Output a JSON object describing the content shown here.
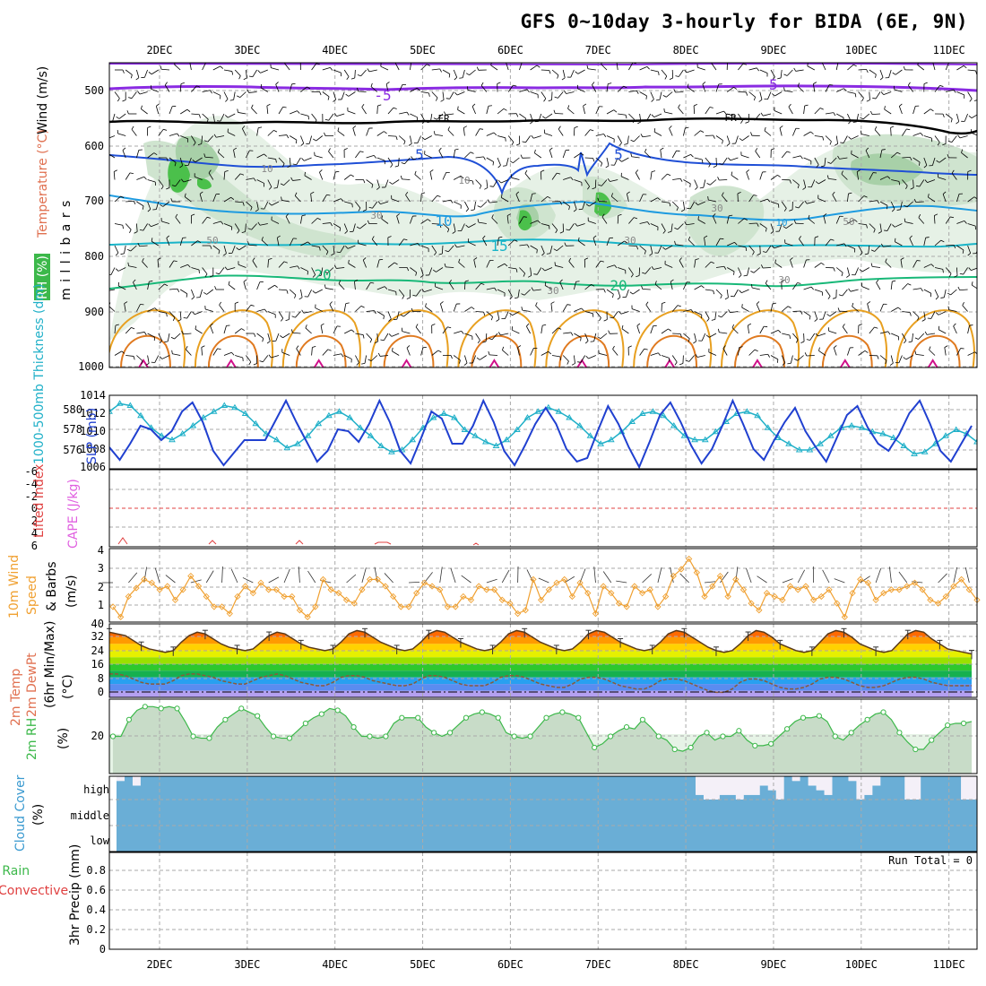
{
  "title": "GFS 0~10day 3-hourly for BIDA (6E, 9N)",
  "days": [
    "2DEC",
    "3DEC",
    "4DEC",
    "5DEC",
    "6DEC",
    "7DEC",
    "8DEC",
    "9DEC",
    "10DEC",
    "11DEC"
  ],
  "colors": {
    "frame": "#000000",
    "grid": "#aaaaaa",
    "temp_purple": "#8a2be2",
    "temp_blue": "#1f4fd6",
    "temp_lightblue": "#1e9be0",
    "temp_cyan": "#19b4c8",
    "temp_green": "#18b878",
    "temp_orange": "#e8a020",
    "temp_red": "#d83010",
    "rh_green": "#3cb84a",
    "slp": "#2040d0",
    "thick": "#20b0c8",
    "wind10": "#f0a030",
    "rh2m": "#3cb84a",
    "cloud": "#6aaed6",
    "lifted": "#e04040",
    "cape": "#e060e0"
  },
  "chart_data": [
    {
      "id": "upper",
      "type": "contour",
      "ylabel_parts": [
        "RH (%)",
        "Temperature (°C)",
        "Wind (m/s)",
        "m i l l i b a r s"
      ],
      "yticks": [
        "500",
        "600",
        "700",
        "800",
        "900",
        "1000"
      ],
      "contour_labels": [
        "-5",
        "-5",
        "FR",
        "FR",
        "5",
        "5",
        "10",
        "10",
        "15",
        "20",
        "20",
        "10",
        "10",
        "30",
        "30",
        "30",
        "30",
        "30",
        "50",
        "50"
      ]
    },
    {
      "id": "thickness-slp",
      "type": "line",
      "ylabel_left": "1000-500mb Thickness (dm)",
      "ylabel_right": "SLP (mb)",
      "yticks_left": [
        "580",
        "578",
        "576"
      ],
      "yticks_right": [
        "1014",
        "1012",
        "1010",
        "1008",
        "1006"
      ],
      "slp": [
        1008.2,
        1006.8,
        1008.6,
        1010.6,
        1010.2,
        1009.0,
        1010.0,
        1012.2,
        1013.2,
        1011.0,
        1007.8,
        1006.2,
        1007.6,
        1009.0,
        1009.0,
        1009.0,
        1011.2,
        1013.4,
        1011.0,
        1008.8,
        1006.6,
        1007.8,
        1010.2,
        1010.0,
        1008.8,
        1010.8,
        1013.4,
        1011.0,
        1007.8,
        1006.4,
        1009.2,
        1012.2,
        1011.4,
        1008.6,
        1008.6,
        1010.6,
        1013.4,
        1011.0,
        1007.8,
        1006.2,
        1008.4,
        1010.8,
        1012.6,
        1010.8,
        1008.0,
        1006.6,
        1007.0,
        1010.0,
        1012.8,
        1010.8,
        1008.2,
        1006.0,
        1008.8,
        1011.8,
        1013.2,
        1011.0,
        1008.4,
        1006.4,
        1008.0,
        1010.6,
        1013.4,
        1010.8,
        1008.0,
        1006.8,
        1009.0,
        1011.0,
        1012.6,
        1010.0,
        1008.2,
        1006.6,
        1009.2,
        1011.8,
        1012.8,
        1010.4,
        1008.6,
        1007.8,
        1009.6,
        1012.0,
        1013.4,
        1010.8,
        1007.8,
        1006.6,
        1008.6,
        1010.6
      ],
      "thickness": [
        579.8,
        580.6,
        580.4,
        579.4,
        578.2,
        577.4,
        577.0,
        577.6,
        578.4,
        579.2,
        579.8,
        580.4,
        580.2,
        579.6,
        578.6,
        577.6,
        577.0,
        576.2,
        576.6,
        577.4,
        578.6,
        579.4,
        579.8,
        579.2,
        578.2,
        577.4,
        576.4,
        575.8,
        576.0,
        577.0,
        578.2,
        579.2,
        579.6,
        579.2,
        578.0,
        577.4,
        576.8,
        576.4,
        577.0,
        578.0,
        579.2,
        579.8,
        580.2,
        579.8,
        579.2,
        578.4,
        577.4,
        576.6,
        577.0,
        577.8,
        578.8,
        579.6,
        579.8,
        579.4,
        578.4,
        577.4,
        577.0,
        577.0,
        577.8,
        578.8,
        579.6,
        579.8,
        579.4,
        578.2,
        577.2,
        576.6,
        576.0,
        576.0,
        576.6,
        577.4,
        578.2,
        578.4,
        578.2,
        577.8,
        577.6,
        577.2,
        576.4,
        575.6,
        575.8,
        576.6,
        577.4,
        578.0,
        577.6,
        576.8
      ]
    },
    {
      "id": "li-cape",
      "type": "line",
      "ylabel_left": "Lifted Index",
      "ylabel_right": "CAPE (J/kg)",
      "yticks": [
        "-6",
        "-4",
        "-2",
        "0",
        "2",
        "4",
        "6"
      ]
    },
    {
      "id": "wind10m",
      "type": "line",
      "ylabel": "10m Wind Speed & Barbs (m/s)",
      "ylabel_parts": [
        "10m Wind",
        "Speed",
        "& Barbs",
        "(m/s)"
      ],
      "yticks": [
        "4",
        "3",
        "2",
        "1"
      ],
      "ylim": [
        0,
        4.3
      ],
      "values": [
        1.0,
        0.4,
        1.6,
        2.1,
        2.6,
        2.4,
        2.0,
        2.2,
        1.4,
        2.0,
        2.8,
        2.2,
        1.6,
        1.0,
        1.0,
        0.6,
        1.6,
        2.2,
        1.8,
        2.4,
        2.0,
        2.0,
        1.6,
        1.6,
        0.8,
        0.4,
        1.0,
        2.6,
        2.0,
        1.8,
        1.4,
        1.2,
        2.0,
        2.6,
        2.6,
        2.2,
        1.6,
        1.0,
        1.0,
        1.8,
        2.4,
        2.2,
        2.0,
        1.0,
        1.0,
        1.6,
        1.4,
        2.2,
        2.0,
        2.0,
        1.4,
        1.2,
        0.6,
        0.8,
        2.6,
        1.4,
        2.0,
        2.4,
        2.6,
        1.6,
        2.4,
        1.8,
        0.6,
        2.2,
        1.8,
        1.2,
        1.0,
        2.2,
        1.8,
        2.0,
        1.0,
        1.6,
        2.8,
        3.2,
        3.8,
        3.0,
        1.6,
        2.2,
        2.8,
        1.6,
        2.6,
        2.0,
        1.2,
        0.8,
        1.8,
        1.6,
        1.4,
        2.2,
        2.0,
        2.2,
        1.4,
        1.6,
        2.0,
        1.2,
        0.4,
        1.8,
        2.6,
        2.4,
        1.4,
        1.8,
        2.0,
        2.0,
        2.2,
        2.4,
        2.0,
        1.4,
        1.2,
        1.6,
        2.2,
        2.6,
        2.0,
        1.4
      ]
    },
    {
      "id": "temp2m",
      "type": "area",
      "ylabel_parts": [
        "2m Temp",
        "2m DewPt",
        "(6hr Min/Max)",
        "(°C)"
      ],
      "yticks": [
        "40",
        "32",
        "24",
        "16",
        "8",
        "0"
      ],
      "ylim": [
        -4,
        40
      ],
      "temp": [
        35,
        34,
        33,
        30,
        27,
        25,
        24,
        23,
        24,
        29,
        33,
        35,
        34,
        31,
        28,
        26,
        25,
        24,
        25,
        29,
        33,
        35,
        34,
        31,
        28,
        26,
        25,
        24,
        25,
        29,
        34,
        36,
        35,
        32,
        29,
        27,
        25,
        24,
        25,
        29,
        34,
        36,
        35,
        32,
        29,
        27,
        25,
        24,
        25,
        29,
        34,
        36,
        35,
        32,
        29,
        27,
        25,
        24,
        25,
        29,
        34,
        36,
        35,
        32,
        29,
        27,
        25,
        24,
        25,
        29,
        34,
        36,
        35,
        32,
        29,
        26,
        24,
        23,
        24,
        28,
        33,
        36,
        35,
        32,
        28,
        26,
        24,
        23,
        24,
        29,
        34,
        36,
        35,
        32,
        28,
        26,
        24,
        23,
        24,
        29,
        34,
        36,
        35,
        31,
        28,
        25,
        24,
        23,
        22
      ],
      "dewpt": [
        10,
        10,
        9,
        7,
        5,
        4,
        4,
        4,
        6,
        9,
        10,
        10,
        9,
        8,
        6,
        5,
        4,
        4,
        6,
        8,
        9,
        10,
        9,
        7,
        5,
        4,
        3,
        3,
        5,
        8,
        9,
        9,
        8,
        6,
        5,
        4,
        3,
        3,
        4,
        7,
        9,
        9,
        8,
        6,
        4,
        3,
        3,
        3,
        5,
        8,
        9,
        9,
        8,
        6,
        4,
        3,
        2,
        2,
        4,
        7,
        8,
        8,
        7,
        5,
        3,
        2,
        1,
        1,
        3,
        6,
        7,
        7,
        6,
        4,
        2,
        0,
        -1,
        -1,
        1,
        5,
        7,
        7,
        6,
        4,
        2,
        1,
        1,
        2,
        4,
        7,
        8,
        8,
        7,
        5,
        3,
        2,
        2,
        3,
        5,
        7,
        8,
        8,
        7,
        5,
        4,
        3,
        3,
        3,
        3
      ]
    },
    {
      "id": "rh2m",
      "type": "area",
      "ylabel": "2m RH (%)",
      "yticks": [
        "20"
      ],
      "ylim": [
        0,
        40
      ],
      "values": [
        20,
        20,
        29,
        34,
        36,
        36,
        35,
        36,
        35,
        28,
        20,
        19,
        19,
        25,
        29,
        32,
        35,
        33,
        31,
        25,
        20,
        19,
        19,
        23,
        27,
        30,
        32,
        35,
        34,
        31,
        25,
        20,
        20,
        19,
        20,
        27,
        30,
        30,
        30,
        25,
        22,
        20,
        22,
        26,
        30,
        32,
        33,
        32,
        30,
        22,
        20,
        19,
        20,
        25,
        30,
        32,
        33,
        32,
        30,
        22,
        14,
        16,
        20,
        23,
        25,
        24,
        29,
        25,
        20,
        18,
        13,
        12,
        14,
        20,
        22,
        18,
        20,
        20,
        23,
        18,
        15,
        15,
        16,
        20,
        24,
        28,
        30,
        30,
        31,
        28,
        20,
        18,
        22,
        26,
        29,
        32,
        33,
        29,
        22,
        17,
        13,
        13,
        18,
        22,
        26,
        27,
        27,
        28
      ]
    },
    {
      "id": "cloud",
      "type": "area",
      "ylabel": "Cloud Cover (%)",
      "yticks": [
        "high",
        "middle",
        "low"
      ],
      "high": [
        80,
        100,
        60,
        100,
        100,
        100,
        100,
        100,
        100,
        100,
        100,
        100,
        100,
        100,
        100,
        100,
        100,
        100,
        100,
        100,
        100,
        100,
        100,
        100,
        100,
        100,
        100,
        100,
        100,
        100,
        100,
        100,
        100,
        100,
        100,
        100,
        100,
        100,
        100,
        100,
        100,
        100,
        100,
        100,
        100,
        100,
        100,
        100,
        100,
        100,
        100,
        100,
        100,
        100,
        100,
        100,
        100,
        100,
        100,
        100,
        100,
        100,
        100,
        100,
        100,
        100,
        100,
        100,
        100,
        100,
        100,
        100,
        20,
        0,
        0,
        20,
        20,
        0,
        20,
        20,
        60,
        40,
        0,
        100,
        80,
        100,
        60,
        40,
        20,
        100,
        100,
        80,
        0,
        20,
        60,
        100,
        100,
        100,
        0,
        0,
        100,
        100,
        100,
        100,
        100,
        0,
        0
      ]
    },
    {
      "id": "precip",
      "type": "bar",
      "ylabel_parts": [
        "Total / Rain",
        "Convective",
        "3hr Precip (mm)"
      ],
      "yticks": [
        "0.8",
        "0.6",
        "0.4",
        "0.2",
        "0"
      ],
      "ylim": [
        0,
        1.0
      ],
      "run_total": "Run Total = 0"
    }
  ]
}
